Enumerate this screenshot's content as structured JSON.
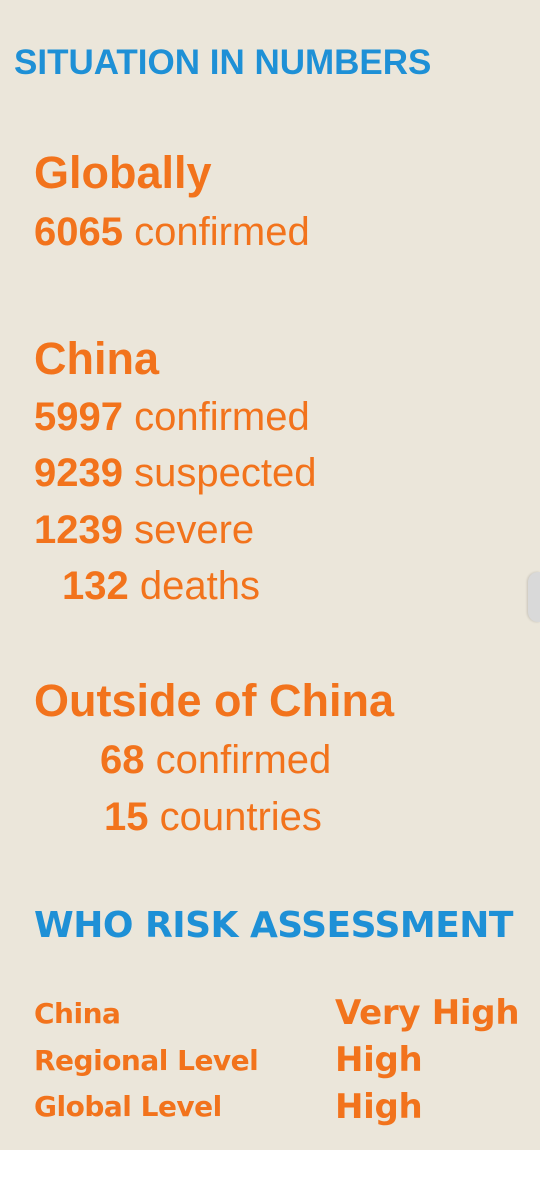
{
  "title": "SITUATION IN NUMBERS",
  "globally": {
    "heading": "Globally",
    "stats": [
      {
        "number": "6065",
        "label": "confirmed"
      }
    ]
  },
  "china": {
    "heading": "China",
    "stats": [
      {
        "number": "5997",
        "label": "confirmed"
      },
      {
        "number": "9239",
        "label": "suspected"
      },
      {
        "number": "1239",
        "label": "severe"
      },
      {
        "number": "132",
        "label": "deaths"
      }
    ]
  },
  "outside": {
    "heading": "Outside of China",
    "stats": [
      {
        "number": "68",
        "label": "confirmed"
      },
      {
        "number": "15",
        "label": "countries"
      }
    ]
  },
  "risk": {
    "title": "WHO RISK ASSESSMENT",
    "rows": [
      {
        "label": "China",
        "value": "Very High"
      },
      {
        "label": "Regional Level",
        "value": "High"
      },
      {
        "label": "Global Level",
        "value": "High"
      }
    ]
  },
  "colors": {
    "background": "#EBE6DA",
    "title_blue": "#1E90D6",
    "accent_orange": "#F2731C"
  }
}
